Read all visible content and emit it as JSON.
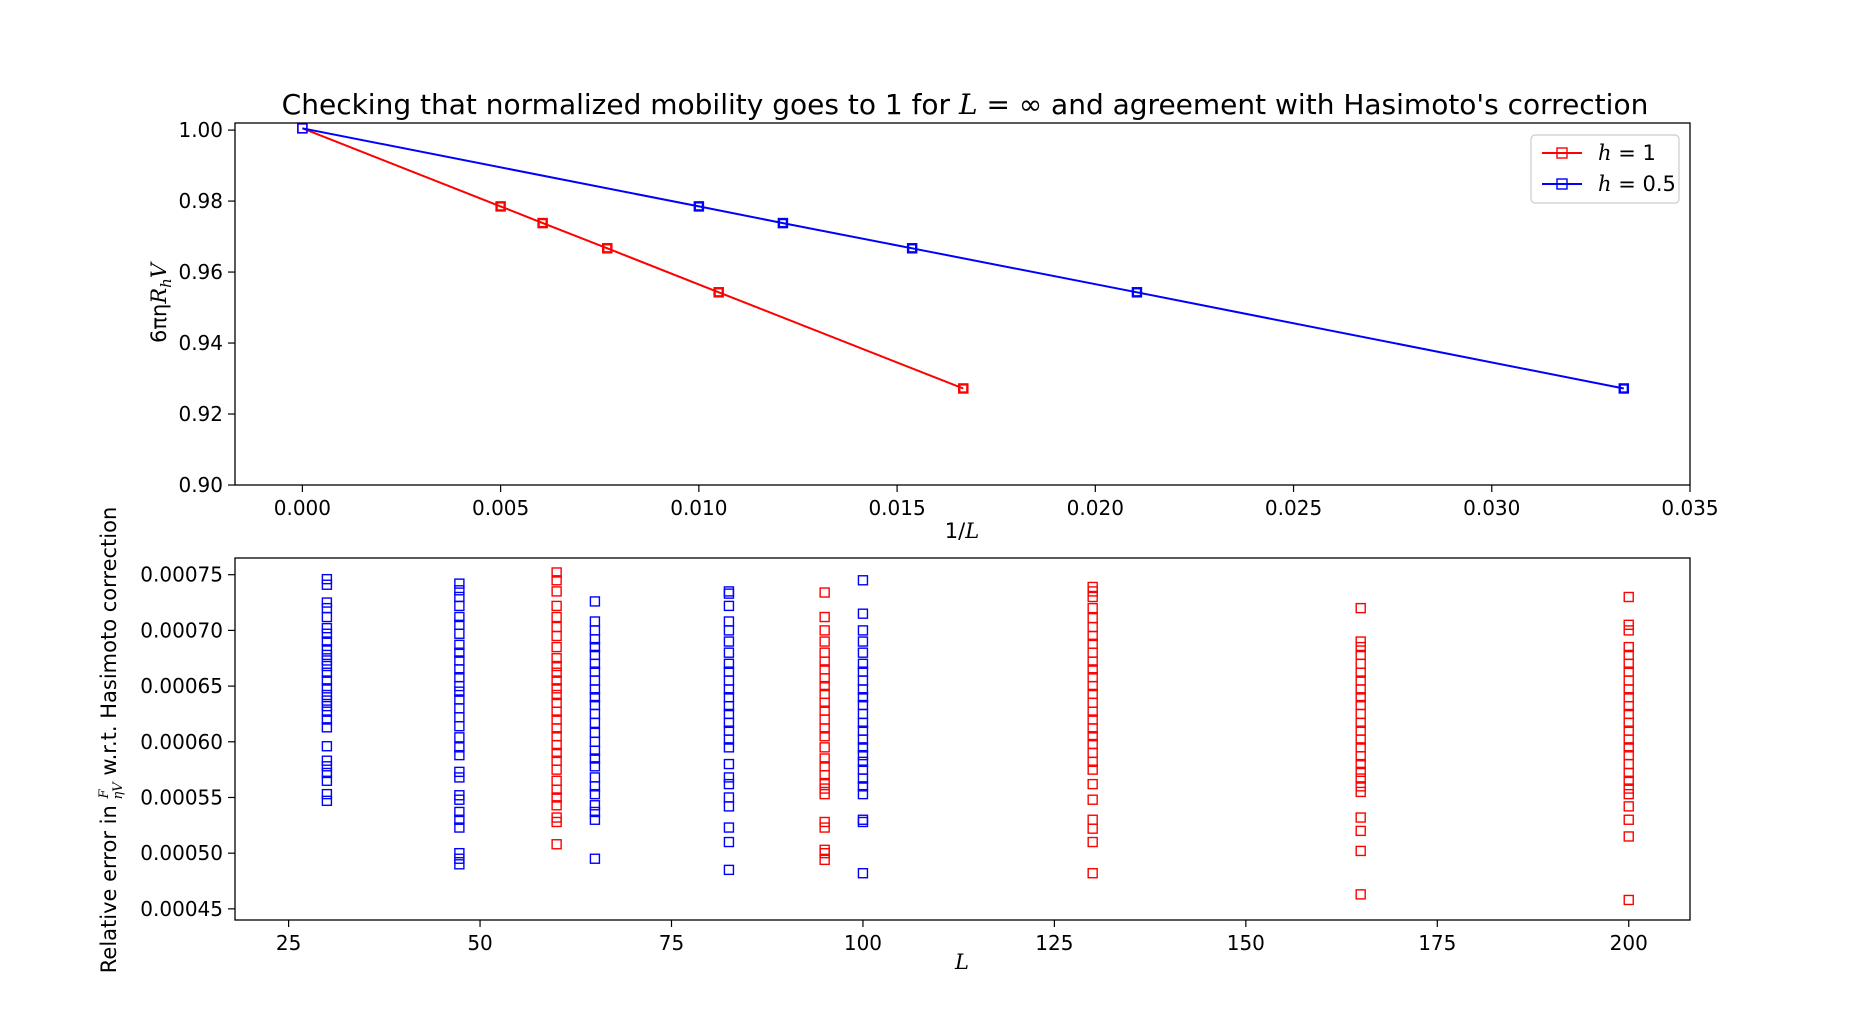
{
  "chart_data": [
    {
      "type": "line",
      "title_parts": [
        "Checking that normalized mobility goes to 1 for ",
        "L",
        " = ∞ and agreement with Hasimoto's correction"
      ],
      "xlabel_parts": [
        "1/",
        "L"
      ],
      "ylabel_parts": [
        "6πη",
        "R",
        "h",
        "V"
      ],
      "xlim": [
        -0.0017,
        0.035
      ],
      "ylim": [
        0.9,
        1.002
      ],
      "xticks": [
        0.0,
        0.005,
        0.01,
        0.015,
        0.02,
        0.025,
        0.03,
        0.035
      ],
      "xtick_labels": [
        "0.000",
        "0.005",
        "0.010",
        "0.015",
        "0.020",
        "0.025",
        "0.030",
        "0.035"
      ],
      "yticks": [
        0.9,
        0.92,
        0.94,
        0.96,
        0.98,
        1.0
      ],
      "ytick_labels": [
        "0.90",
        "0.92",
        "0.94",
        "0.96",
        "0.98",
        "1.00"
      ],
      "legend_position": "top-right",
      "series": [
        {
          "name_parts": [
            "h",
            " = 1"
          ],
          "color": "#ff0000",
          "x": [
            0.0,
            0.005,
            0.00606,
            0.00769,
            0.0105,
            0.01667
          ],
          "y": [
            1.0005,
            0.9785,
            0.9738,
            0.9667,
            0.9543,
            0.9272
          ]
        },
        {
          "name_parts": [
            "h",
            " = 0.5"
          ],
          "color": "#0000ff",
          "x": [
            0.0,
            0.01,
            0.01212,
            0.01538,
            0.02105,
            0.03333
          ],
          "y": [
            1.0005,
            0.9785,
            0.9738,
            0.9667,
            0.9543,
            0.9272
          ]
        }
      ]
    },
    {
      "type": "scatter",
      "xlabel_parts": [
        "L"
      ],
      "ylabel_parts": [
        "Relative error in ",
        "F",
        "ηV",
        " w.r.t. Hasimoto correction"
      ],
      "xlim": [
        18,
        208
      ],
      "ylim": [
        0.00044,
        0.000765
      ],
      "xticks": [
        25,
        50,
        75,
        100,
        125,
        150,
        175,
        200
      ],
      "xtick_labels": [
        "25",
        "50",
        "75",
        "100",
        "125",
        "150",
        "175",
        "200"
      ],
      "yticks": [
        0.00045,
        0.0005,
        0.00055,
        0.0006,
        0.00065,
        0.0007,
        0.00075
      ],
      "ytick_labels": [
        "0.00045",
        "0.00050",
        "0.00055",
        "0.00060",
        "0.00065",
        "0.00070",
        "0.00075"
      ],
      "series": [
        {
          "color": "#0000ff",
          "points": [
            {
              "x": 30,
              "y": [
                0.000547,
                0.000553,
                0.000565,
                0.000572,
                0.000578,
                0.000583,
                0.000596,
                0.000613,
                0.00062,
                0.000627,
                0.000632,
                0.000637,
                0.000642,
                0.000648,
                0.000655,
                0.000662,
                0.000668,
                0.000673,
                0.000678,
                0.000683,
                0.00069,
                0.000697,
                0.000702,
                0.000712,
                0.00072,
                0.000725,
                0.000741,
                0.000746
              ]
            },
            {
              "x": 47.3,
              "y": [
                0.00049,
                0.000495,
                0.0005,
                0.000523,
                0.00053,
                0.000537,
                0.000548,
                0.000552,
                0.000568,
                0.000573,
                0.000588,
                0.000595,
                0.000604,
                0.000614,
                0.000622,
                0.00063,
                0.000638,
                0.000645,
                0.00065,
                0.000658,
                0.000665,
                0.000673,
                0.00068,
                0.000687,
                0.000697,
                0.000705,
                0.000712,
                0.000722,
                0.00073,
                0.000736,
                0.000742
              ]
            },
            {
              "x": 65,
              "y": [
                0.000495,
                0.00053,
                0.000537,
                0.000543,
                0.000553,
                0.00056,
                0.000568,
                0.000578,
                0.000585,
                0.000592,
                0.0006,
                0.000608,
                0.000617,
                0.000625,
                0.000633,
                0.00064,
                0.000647,
                0.000655,
                0.000663,
                0.00067,
                0.000678,
                0.000685,
                0.000692,
                0.0007,
                0.000708,
                0.000726
              ]
            },
            {
              "x": 82.5,
              "y": [
                0.000485,
                0.00051,
                0.000523,
                0.000542,
                0.00055,
                0.000562,
                0.000568,
                0.00058,
                0.000595,
                0.000602,
                0.00061,
                0.000617,
                0.000625,
                0.000632,
                0.00064,
                0.000647,
                0.000655,
                0.000663,
                0.00067,
                0.00068,
                0.00069,
                0.0007,
                0.000708,
                0.000722,
                0.000733,
                0.000735
              ]
            },
            {
              "x": 100,
              "y": [
                0.000482,
                0.000528,
                0.00053,
                0.000553,
                0.00056,
                0.000567,
                0.000575,
                0.000582,
                0.000588,
                0.000595,
                0.000602,
                0.00061,
                0.000617,
                0.000625,
                0.000633,
                0.00064,
                0.000647,
                0.000655,
                0.000663,
                0.00067,
                0.00068,
                0.00069,
                0.0007,
                0.000715,
                0.000745
              ]
            }
          ]
        },
        {
          "color": "#ff0000",
          "points": [
            {
              "x": 60,
              "y": [
                0.000508,
                0.000528,
                0.000532,
                0.000543,
                0.00055,
                0.000557,
                0.000565,
                0.000575,
                0.000583,
                0.00059,
                0.000597,
                0.000605,
                0.000612,
                0.00062,
                0.000627,
                0.000635,
                0.000642,
                0.000648,
                0.000655,
                0.000662,
                0.000668,
                0.000675,
                0.000685,
                0.000695,
                0.000703,
                0.000712,
                0.000722,
                0.000735,
                0.000745,
                0.000752
              ]
            },
            {
              "x": 95,
              "y": [
                0.000494,
                0.0005,
                0.000503,
                0.000523,
                0.000528,
                0.000553,
                0.000558,
                0.000563,
                0.00057,
                0.000578,
                0.000585,
                0.000595,
                0.000605,
                0.000612,
                0.00062,
                0.000628,
                0.000635,
                0.000643,
                0.00065,
                0.000657,
                0.000665,
                0.000672,
                0.00068,
                0.00069,
                0.0007,
                0.000712,
                0.000734
              ]
            },
            {
              "x": 130,
              "y": [
                0.000482,
                0.00051,
                0.000522,
                0.00053,
                0.000548,
                0.000562,
                0.000575,
                0.000582,
                0.00059,
                0.000598,
                0.000605,
                0.000612,
                0.00062,
                0.000627,
                0.000635,
                0.000643,
                0.00065,
                0.000658,
                0.000665,
                0.000672,
                0.00068,
                0.000688,
                0.000695,
                0.000703,
                0.000711,
                0.00072,
                0.00073,
                0.000735,
                0.000739
              ]
            },
            {
              "x": 165,
              "y": [
                0.000463,
                0.000502,
                0.00052,
                0.000532,
                0.000555,
                0.00056,
                0.000567,
                0.000573,
                0.00058,
                0.000587,
                0.000595,
                0.000602,
                0.00061,
                0.000617,
                0.000625,
                0.000633,
                0.00064,
                0.000647,
                0.000655,
                0.000662,
                0.00067,
                0.000678,
                0.000685,
                0.00069,
                0.00072
              ]
            },
            {
              "x": 200,
              "y": [
                0.000458,
                0.000515,
                0.00053,
                0.000542,
                0.000553,
                0.000558,
                0.000565,
                0.000572,
                0.00058,
                0.000588,
                0.000595,
                0.000602,
                0.00061,
                0.000617,
                0.000625,
                0.000632,
                0.00064,
                0.000647,
                0.000655,
                0.000663,
                0.00067,
                0.000678,
                0.000685,
                0.0007,
                0.000705,
                0.00073
              ]
            }
          ]
        }
      ]
    }
  ]
}
